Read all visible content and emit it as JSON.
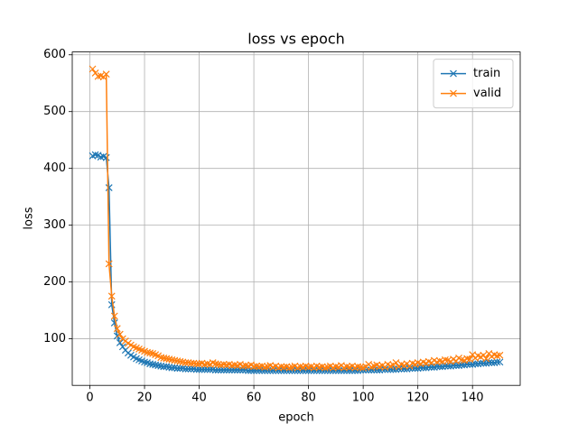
{
  "chart_data": {
    "type": "line",
    "title": "loss vs epoch",
    "xlabel": "epoch",
    "ylabel": "loss",
    "x": [
      1,
      2,
      3,
      4,
      5,
      6,
      7,
      8,
      9,
      10,
      11,
      12,
      13,
      14,
      15,
      16,
      17,
      18,
      19,
      20,
      21,
      22,
      23,
      24,
      25,
      26,
      27,
      28,
      29,
      30,
      31,
      32,
      33,
      34,
      35,
      36,
      37,
      38,
      39,
      40,
      41,
      42,
      43,
      44,
      45,
      46,
      47,
      48,
      49,
      50,
      51,
      52,
      53,
      54,
      55,
      56,
      57,
      58,
      59,
      60,
      61,
      62,
      63,
      64,
      65,
      66,
      67,
      68,
      69,
      70,
      71,
      72,
      73,
      74,
      75,
      76,
      77,
      78,
      79,
      80,
      81,
      82,
      83,
      84,
      85,
      86,
      87,
      88,
      89,
      90,
      91,
      92,
      93,
      94,
      95,
      96,
      97,
      98,
      99,
      100,
      101,
      102,
      103,
      104,
      105,
      106,
      107,
      108,
      109,
      110,
      111,
      112,
      113,
      114,
      115,
      116,
      117,
      118,
      119,
      120,
      121,
      122,
      123,
      124,
      125,
      126,
      127,
      128,
      129,
      130,
      131,
      132,
      133,
      134,
      135,
      136,
      137,
      138,
      139,
      140,
      141,
      142,
      143,
      144,
      145,
      146,
      147,
      148,
      149,
      150
    ],
    "series": [
      {
        "name": "train",
        "color": "#1f77b4",
        "values": [
          422,
          424,
          423,
          420,
          421,
          419,
          366,
          160,
          128,
          105,
          93,
          86,
          80,
          75,
          71,
          68,
          65,
          63,
          61,
          59,
          58,
          56,
          55,
          54,
          53,
          52,
          51,
          51,
          50,
          49,
          49,
          48,
          48,
          48,
          47,
          47,
          47,
          47,
          46,
          46,
          46,
          46,
          46,
          46,
          46,
          45,
          45,
          45,
          45,
          45,
          45,
          45,
          45,
          45,
          45,
          45,
          45,
          44,
          44,
          44,
          44,
          44,
          44,
          44,
          44,
          44,
          44,
          44,
          44,
          44,
          44,
          44,
          44,
          44,
          44,
          44,
          44,
          44,
          44,
          44,
          44,
          44,
          44,
          44,
          44,
          44,
          44,
          44,
          44,
          44,
          44,
          44,
          44,
          44,
          44,
          44,
          44,
          44,
          45,
          45,
          45,
          45,
          45,
          45,
          45,
          45,
          46,
          46,
          46,
          46,
          46,
          46,
          47,
          47,
          47,
          47,
          48,
          48,
          48,
          48,
          49,
          49,
          49,
          50,
          50,
          50,
          51,
          51,
          51,
          52,
          52,
          52,
          53,
          53,
          53,
          54,
          54,
          55,
          55,
          55,
          56,
          56,
          57,
          57,
          57,
          58,
          58,
          58,
          59,
          59
        ]
      },
      {
        "name": "valid",
        "color": "#ff7f0e",
        "values": [
          575,
          568,
          562,
          563,
          561,
          566,
          232,
          175,
          140,
          118,
          108,
          100,
          96,
          92,
          89,
          86,
          84,
          82,
          80,
          78,
          76,
          75,
          74,
          72,
          70,
          67,
          66,
          65,
          64,
          63,
          62,
          61,
          60,
          59,
          58,
          58,
          57,
          57,
          56,
          56,
          57,
          55,
          56,
          55,
          58,
          56,
          55,
          54,
          55,
          54,
          55,
          53,
          54,
          53,
          55,
          52,
          53,
          52,
          54,
          51,
          52,
          51,
          52,
          50,
          51,
          53,
          50,
          52,
          49,
          51,
          50,
          51,
          49,
          50,
          52,
          49,
          51,
          50,
          52,
          50,
          51,
          49,
          52,
          50,
          51,
          49,
          50,
          52,
          49,
          51,
          50,
          53,
          49,
          51,
          50,
          52,
          49,
          51,
          50,
          49,
          51,
          55,
          50,
          52,
          54,
          51,
          53,
          50,
          55,
          52,
          54,
          58,
          51,
          55,
          53,
          56,
          52,
          57,
          55,
          58,
          56,
          59,
          57,
          60,
          58,
          62,
          59,
          61,
          60,
          63,
          62,
          60,
          64,
          61,
          66,
          63,
          62,
          65,
          64,
          72,
          66,
          70,
          68,
          71,
          65,
          74,
          69,
          72,
          70,
          71
        ]
      }
    ],
    "xlim": [
      -6.45,
      157.45
    ],
    "ylim": [
      18,
      605
    ],
    "xticks": [
      0,
      20,
      40,
      60,
      80,
      100,
      120,
      140
    ],
    "yticks": [
      100,
      200,
      300,
      400,
      500,
      600
    ],
    "grid": true,
    "legend": "upper right"
  }
}
